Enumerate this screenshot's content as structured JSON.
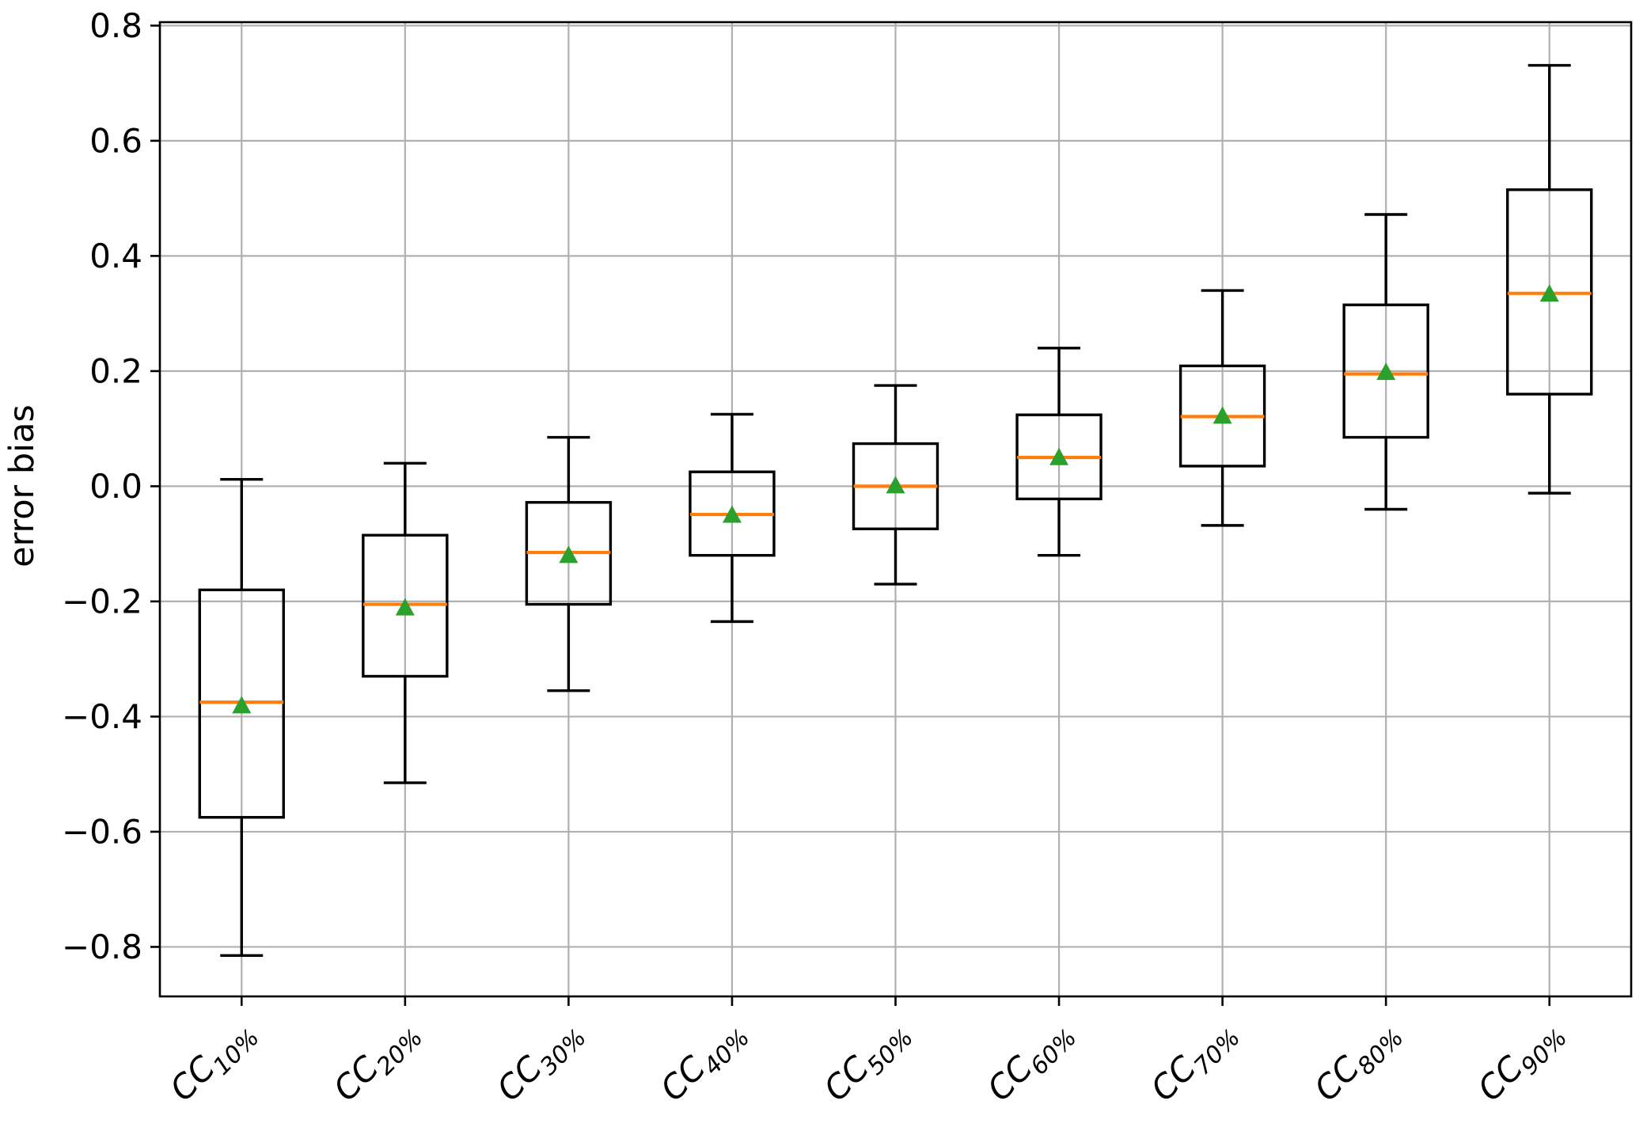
{
  "chart_data": {
    "type": "boxplot",
    "title": "",
    "ylabel": "error bias",
    "grid": true,
    "legend": false,
    "ylim": [
      -0.886,
      0.806
    ],
    "yticks": {
      "values": [
        0.8,
        0.6,
        0.4,
        0.2,
        0.0,
        -0.2,
        -0.4,
        -0.6,
        -0.8
      ],
      "labels": [
        "0.8",
        "0.6",
        "0.4",
        "0.2",
        "0.0",
        "−0.2",
        "−0.4",
        "−0.6",
        "−0.8"
      ]
    },
    "categories": [
      {
        "base": "CC",
        "sub": "10%"
      },
      {
        "base": "CC",
        "sub": "20%"
      },
      {
        "base": "CC",
        "sub": "30%"
      },
      {
        "base": "CC",
        "sub": "40%"
      },
      {
        "base": "CC",
        "sub": "50%"
      },
      {
        "base": "CC",
        "sub": "60%"
      },
      {
        "base": "CC",
        "sub": "70%"
      },
      {
        "base": "CC",
        "sub": "80%"
      },
      {
        "base": "CC",
        "sub": "90%"
      }
    ],
    "boxes": [
      {
        "label": "CC10%",
        "whislo": -0.815,
        "q1": -0.575,
        "med": -0.375,
        "mean": -0.382,
        "q3": -0.18,
        "whishi": 0.012
      },
      {
        "label": "CC20%",
        "whislo": -0.515,
        "q1": -0.33,
        "med": -0.205,
        "mean": -0.212,
        "q3": -0.085,
        "whishi": 0.04
      },
      {
        "label": "CC30%",
        "whislo": -0.355,
        "q1": -0.205,
        "med": -0.115,
        "mean": -0.121,
        "q3": -0.028,
        "whishi": 0.085
      },
      {
        "label": "CC40%",
        "whislo": -0.235,
        "q1": -0.12,
        "med": -0.049,
        "mean": -0.051,
        "q3": 0.025,
        "whishi": 0.125
      },
      {
        "label": "CC50%",
        "whislo": -0.17,
        "q1": -0.074,
        "med": 0.0,
        "mean": 0.0,
        "q3": 0.074,
        "whishi": 0.175
      },
      {
        "label": "CC60%",
        "whislo": -0.12,
        "q1": -0.022,
        "med": 0.05,
        "mean": 0.049,
        "q3": 0.124,
        "whishi": 0.24
      },
      {
        "label": "CC70%",
        "whislo": -0.068,
        "q1": 0.035,
        "med": 0.121,
        "mean": 0.121,
        "q3": 0.209,
        "whishi": 0.34
      },
      {
        "label": "CC80%",
        "whislo": -0.04,
        "q1": 0.085,
        "med": 0.195,
        "mean": 0.197,
        "q3": 0.315,
        "whishi": 0.472
      },
      {
        "label": "CC90%",
        "whislo": -0.012,
        "q1": 0.16,
        "med": 0.335,
        "mean": 0.333,
        "q3": 0.515,
        "whishi": 0.731
      }
    ],
    "colors": {
      "box": "#000000",
      "whisker": "#000000",
      "median": "#ff7f0e",
      "mean_marker": "#2ca02c",
      "grid": "#b0b0b0",
      "spine": "#000000",
      "background": "#ffffff"
    },
    "mean_marker_shape": "triangle_up"
  }
}
